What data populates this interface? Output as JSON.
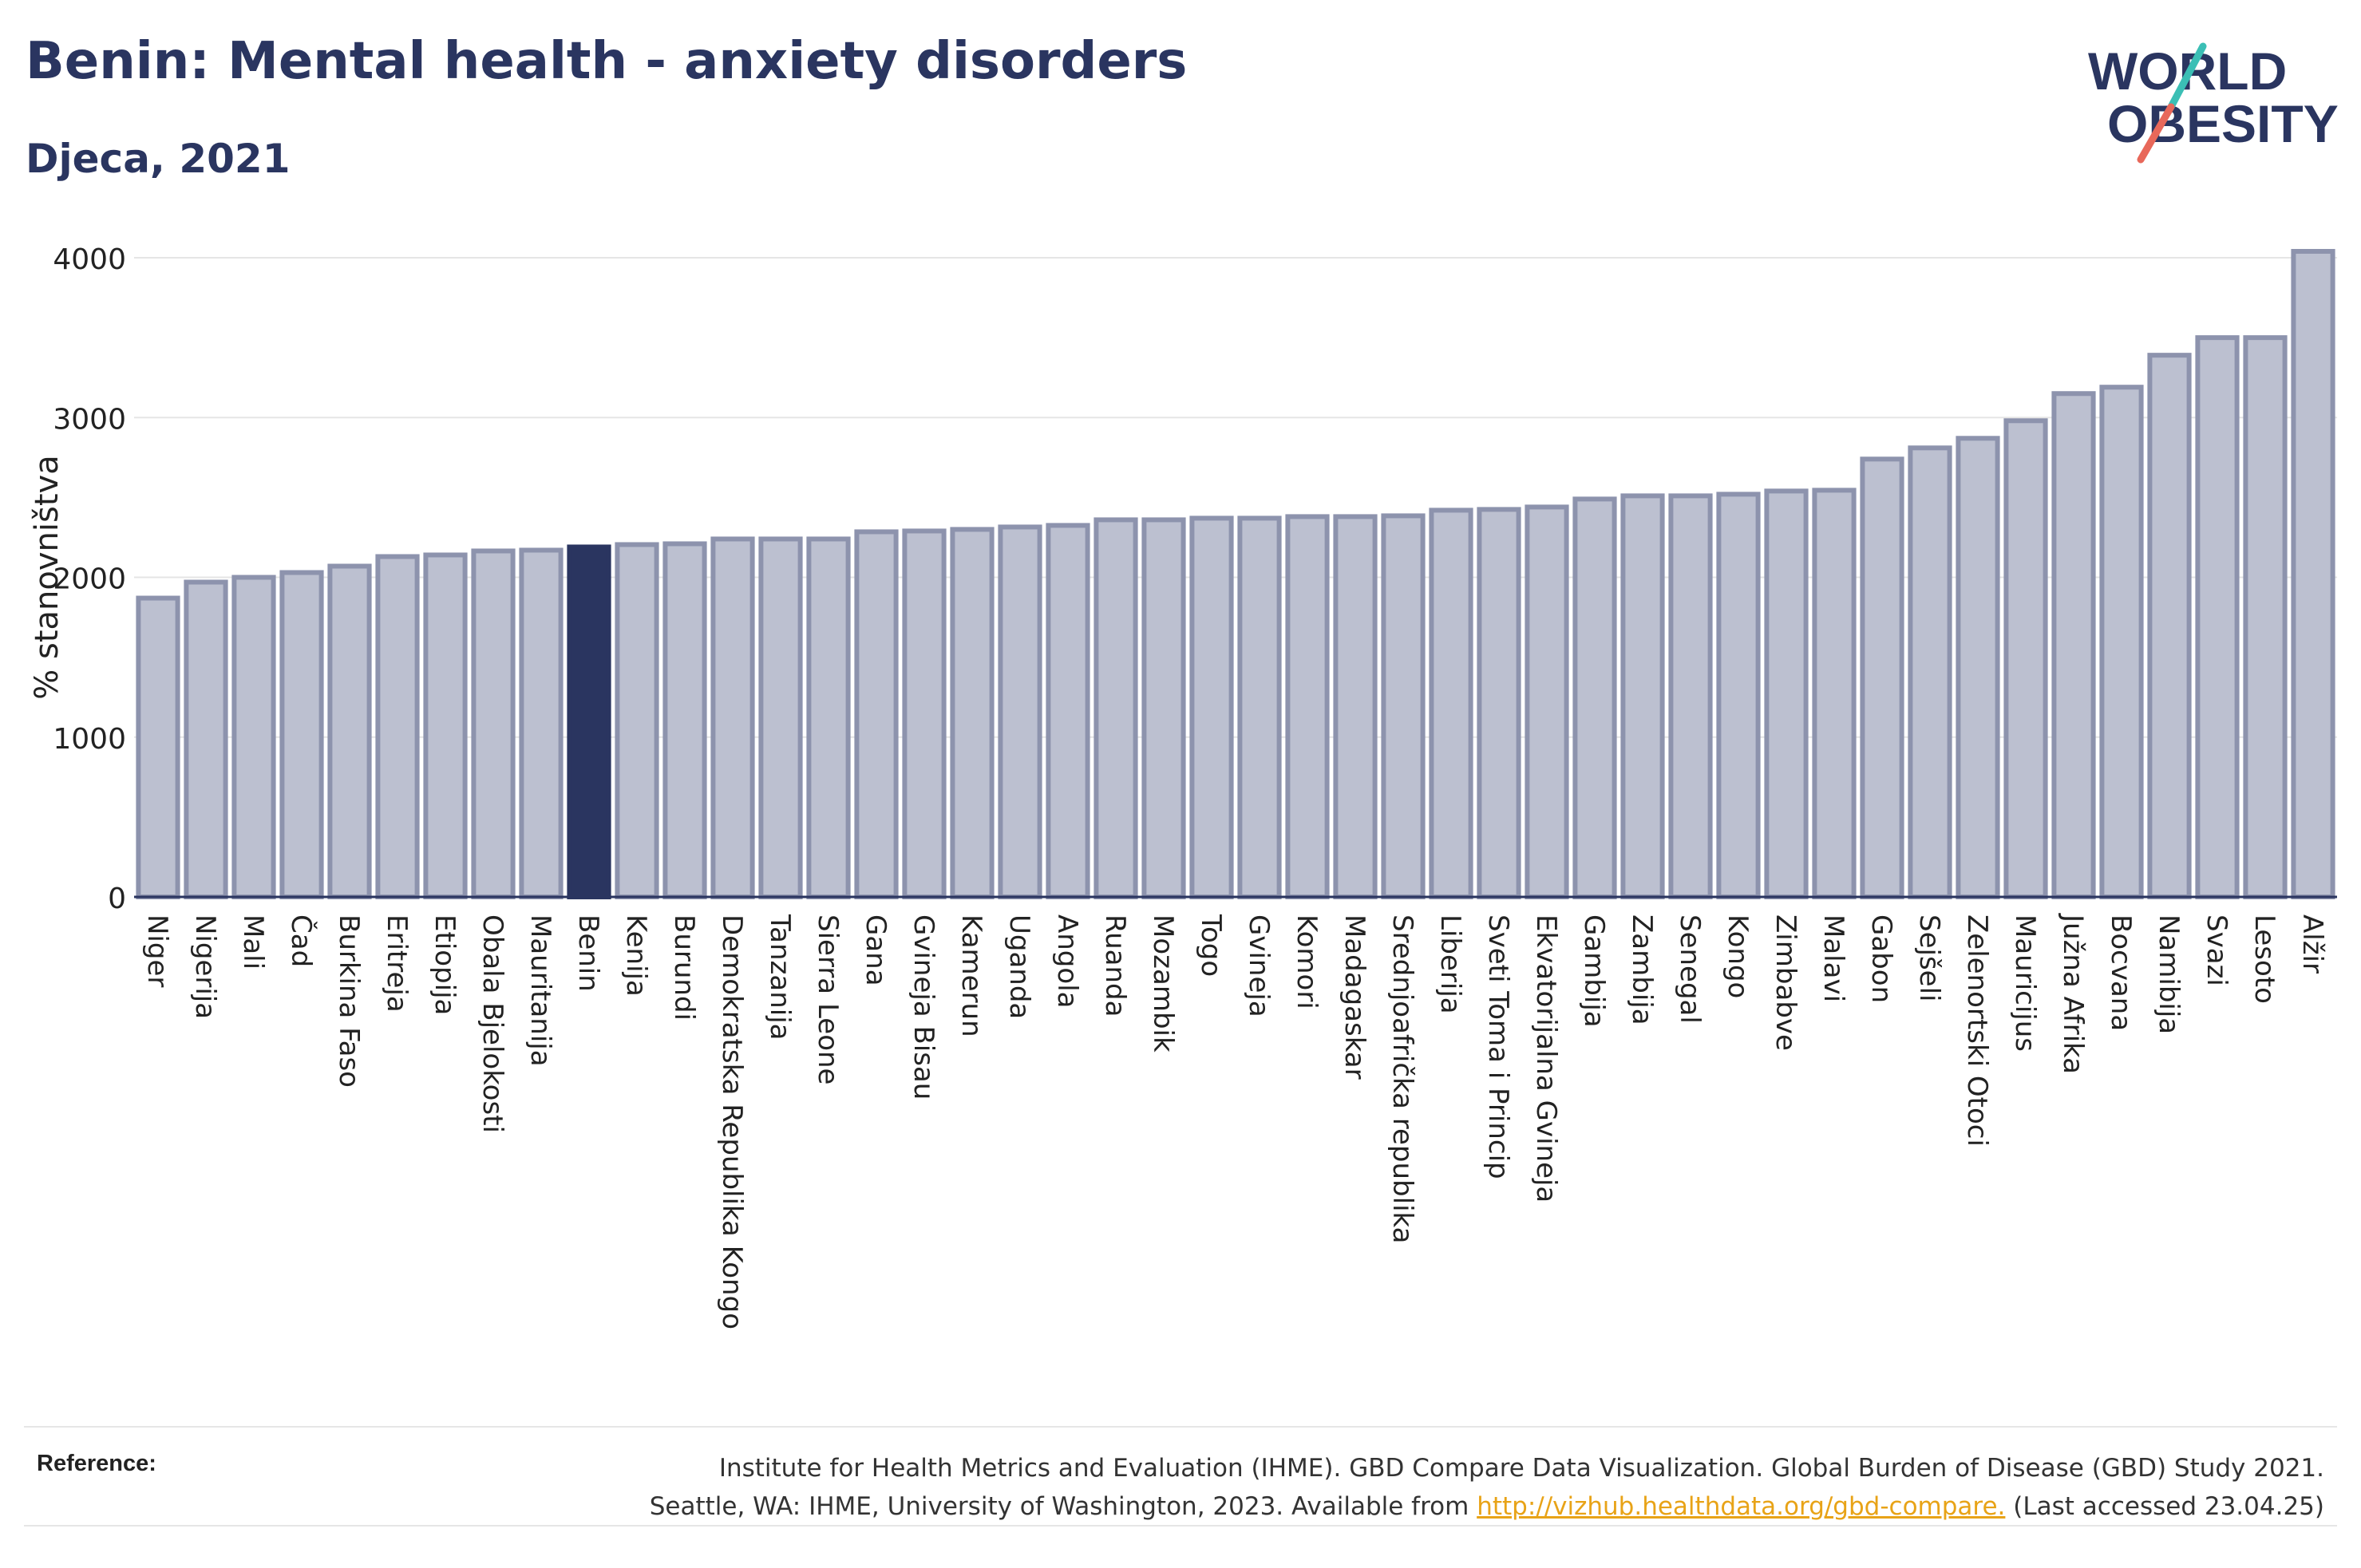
{
  "header": {
    "title": "Benin: Mental health - anxiety disorders",
    "subtitle": "Djeca, 2021"
  },
  "logo": {
    "line1": "WORLD",
    "line2": "OBESITY"
  },
  "colors": {
    "highlight": "#2a3560",
    "bar_fill": "#bcc0d0",
    "bar_stroke": "#8d93ad",
    "title": "#2a3560",
    "link": "#e8a317",
    "logo_teal": "#3bbfb5",
    "logo_coral": "#e8685a"
  },
  "chart_data": {
    "type": "bar",
    "title": "Benin: Mental health - anxiety disorders",
    "subtitle": "Djeca, 2021",
    "ylabel": "% stanovništva",
    "xlabel": "",
    "ylim": [
      0,
      4200
    ],
    "yticks": [
      0,
      1000,
      2000,
      3000,
      4000
    ],
    "grid": true,
    "highlight": "Benin",
    "categories": [
      "Niger",
      "Nigerija",
      "Mali",
      "Čad",
      "Burkina Faso",
      "Eritreja",
      "Etiopija",
      "Obala Bjelokosti",
      "Mauritanija",
      "Benin",
      "Kenija",
      "Burundi",
      "Demokratska Republika Kongo",
      "Tanzanija",
      "Sierra Leone",
      "Gana",
      "Gvineja Bisau",
      "Kamerun",
      "Uganda",
      "Angola",
      "Ruanda",
      "Mozambik",
      "Togo",
      "Gvineja",
      "Komori",
      "Madagaskar",
      "Srednjoafrička republika",
      "Liberija",
      "Sveti Toma i Princip",
      "Ekvatorijalna Gvineja",
      "Gambija",
      "Zambija",
      "Senegal",
      "Kongo",
      "Zimbabve",
      "Malavi",
      "Gabon",
      "Sejšeli",
      "Zelenortski Otoci",
      "Mauricijus",
      "Južna Afrika",
      "Bocvana",
      "Namibija",
      "Svazi",
      "Lesoto",
      "Alžir"
    ],
    "values": [
      1870,
      1970,
      2000,
      2030,
      2070,
      2130,
      2140,
      2165,
      2170,
      2190,
      2205,
      2210,
      2240,
      2240,
      2240,
      2285,
      2290,
      2300,
      2315,
      2325,
      2360,
      2360,
      2370,
      2370,
      2380,
      2380,
      2385,
      2420,
      2425,
      2440,
      2490,
      2510,
      2510,
      2520,
      2540,
      2545,
      2740,
      2810,
      2870,
      2980,
      3150,
      3190,
      3390,
      3500,
      3500,
      4040
    ]
  },
  "footer": {
    "reference_label": "Reference:",
    "reference_line1": "Institute for Health Metrics and Evaluation (IHME). GBD Compare Data Visualization. Global Burden of Disease (GBD) Study 2021.",
    "reference_line2_prefix": "Seattle, WA: IHME, University of Washington, 2023. Available from ",
    "reference_link": "http://vizhub.healthdata.org/gbd-compare.",
    "reference_line2_suffix": " (Last accessed 23.04.25)"
  }
}
